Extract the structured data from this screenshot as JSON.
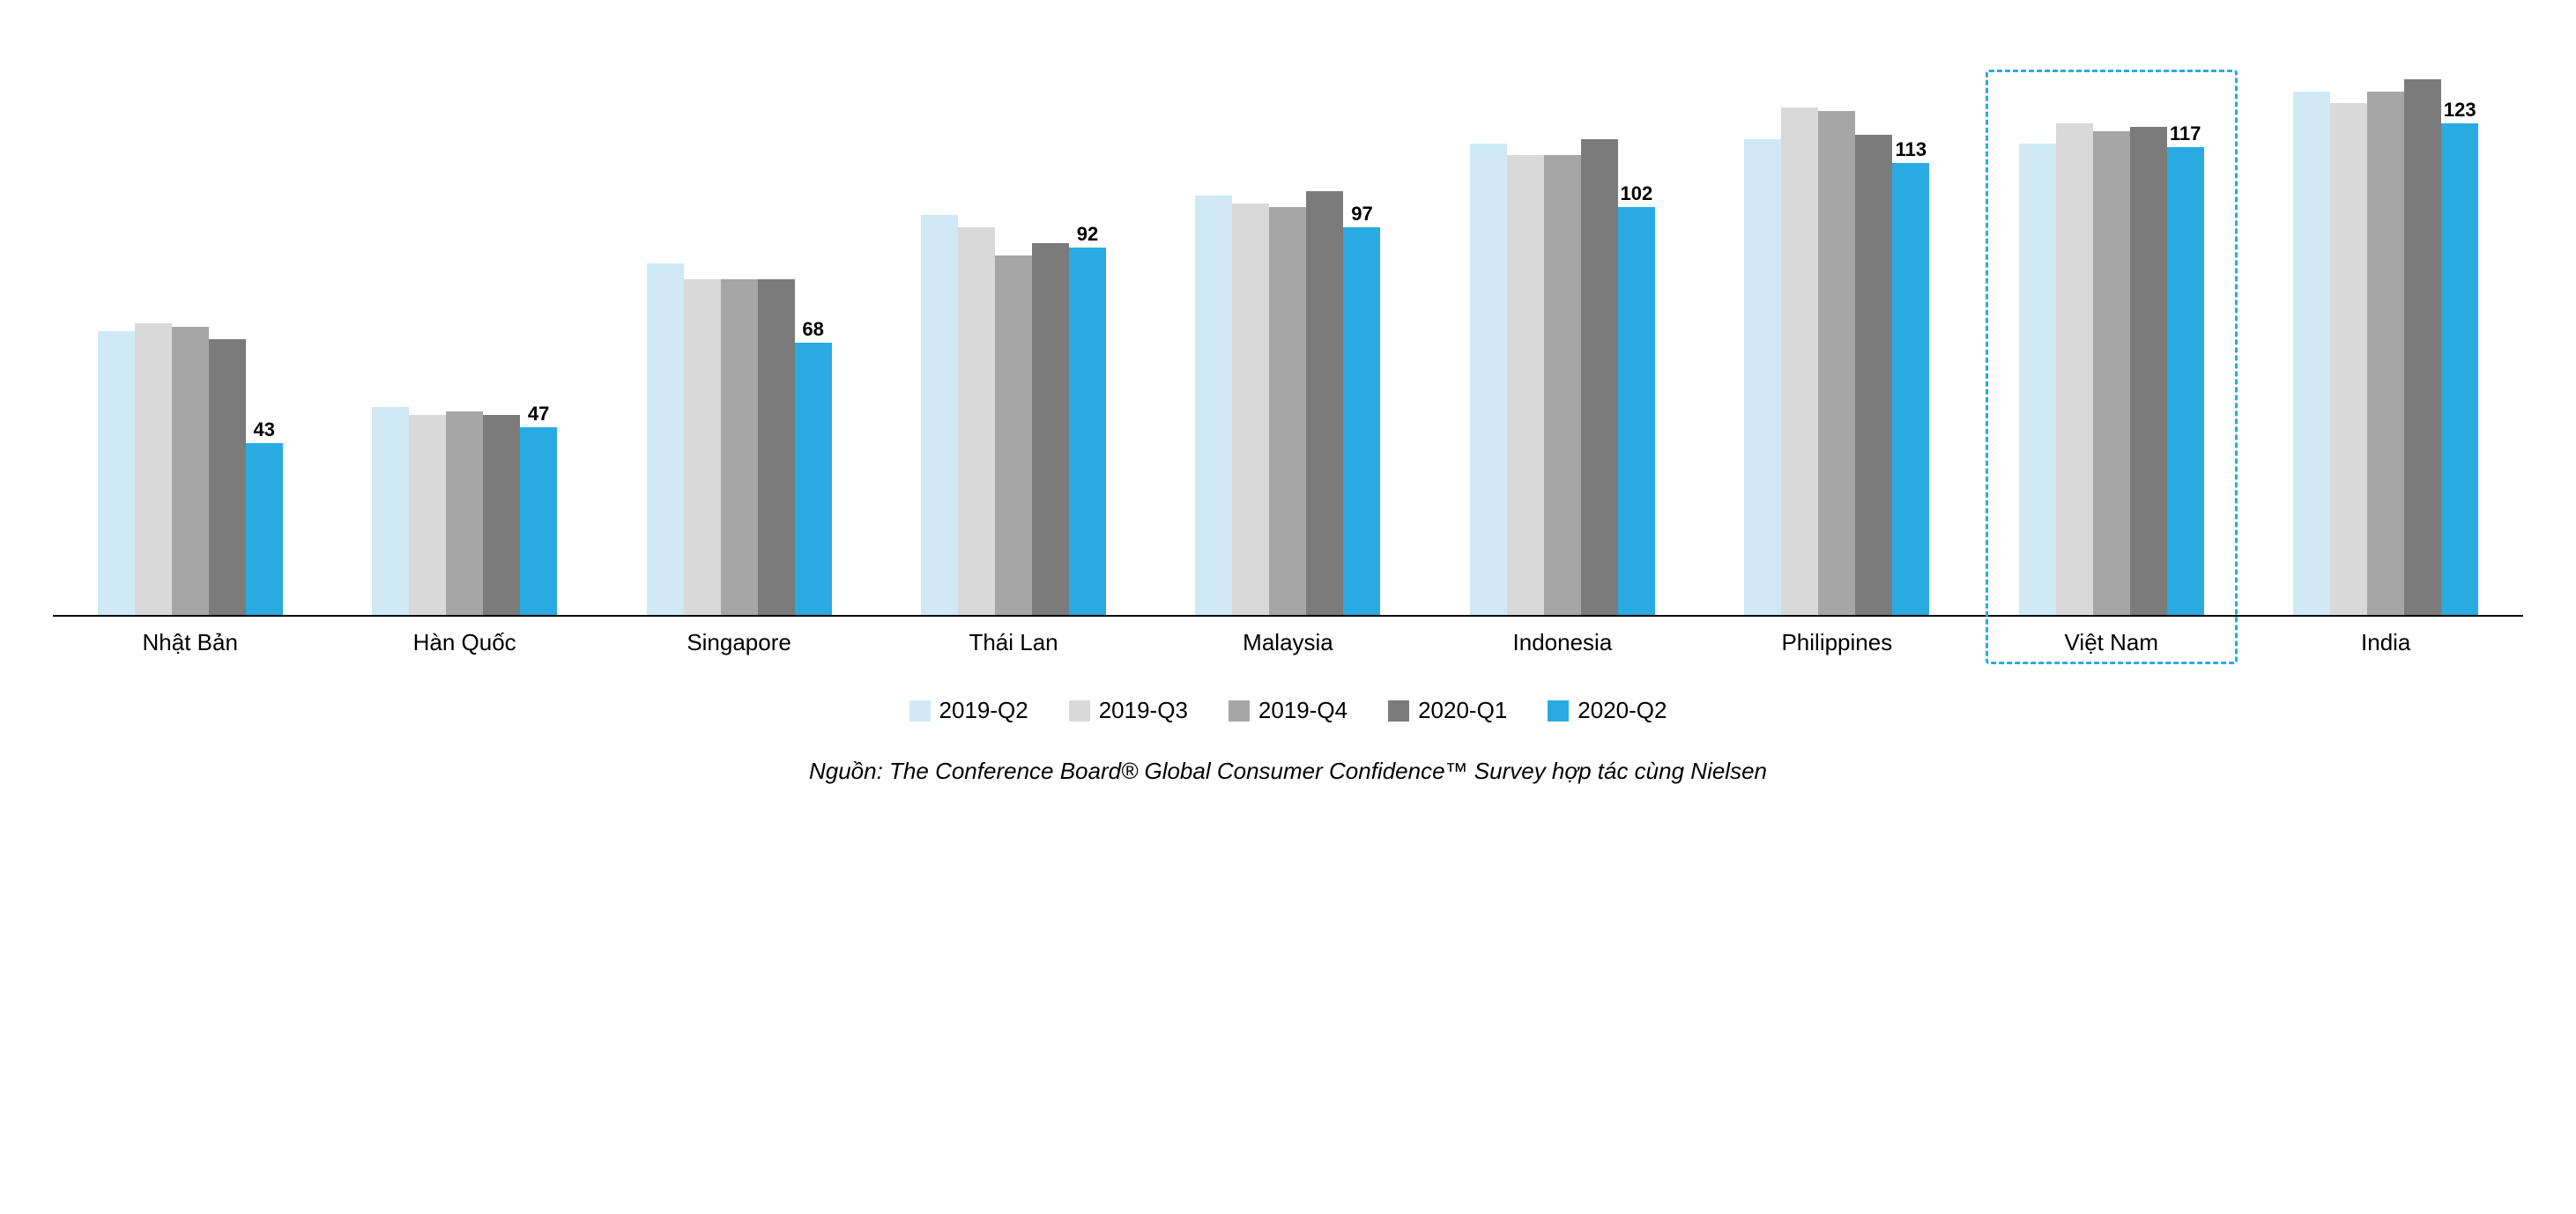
{
  "chart": {
    "type": "bar",
    "y_max": 145,
    "background_color": "#ffffff",
    "axis_color": "#000000",
    "series": [
      {
        "key": "2019-Q2",
        "color": "#cfe9f6"
      },
      {
        "key": "2019-Q3",
        "color": "#d9d9d9"
      },
      {
        "key": "2019-Q4",
        "color": "#a6a6a6"
      },
      {
        "key": "2020-Q1",
        "color": "#7b7b7b"
      },
      {
        "key": "2020-Q2",
        "color": "#29abe2"
      }
    ],
    "categories": [
      {
        "name": "Nhật Bản",
        "values": [
          71,
          73,
          72,
          69,
          43
        ],
        "label_value": 43
      },
      {
        "name": "Hàn Quốc",
        "values": [
          52,
          50,
          51,
          50,
          47
        ],
        "label_value": 47
      },
      {
        "name": "Singapore",
        "values": [
          88,
          84,
          84,
          84,
          68
        ],
        "label_value": 68
      },
      {
        "name": "Thái Lan",
        "values": [
          100,
          97,
          90,
          93,
          92
        ],
        "label_value": 92
      },
      {
        "name": "Malaysia",
        "values": [
          105,
          103,
          102,
          106,
          97
        ],
        "label_value": 97
      },
      {
        "name": "Indonesia",
        "values": [
          118,
          115,
          115,
          119,
          102
        ],
        "label_value": 102
      },
      {
        "name": "Philippines",
        "values": [
          119,
          127,
          126,
          120,
          113
        ],
        "label_value": 113
      },
      {
        "name": "Việt Nam",
        "values": [
          118,
          123,
          121,
          122,
          117
        ],
        "label_value": 117,
        "highlight": true
      },
      {
        "name": "India",
        "values": [
          131,
          128,
          131,
          134,
          123
        ],
        "label_value": 123
      }
    ],
    "label_fontsize": 22,
    "x_label_fontsize": 26,
    "legend_fontsize": 26,
    "highlight_border_color": "#29abe2"
  },
  "source_text": "Nguồn: The Conference Board® Global Consumer Confidence™ Survey hợp tác cùng Nielsen"
}
